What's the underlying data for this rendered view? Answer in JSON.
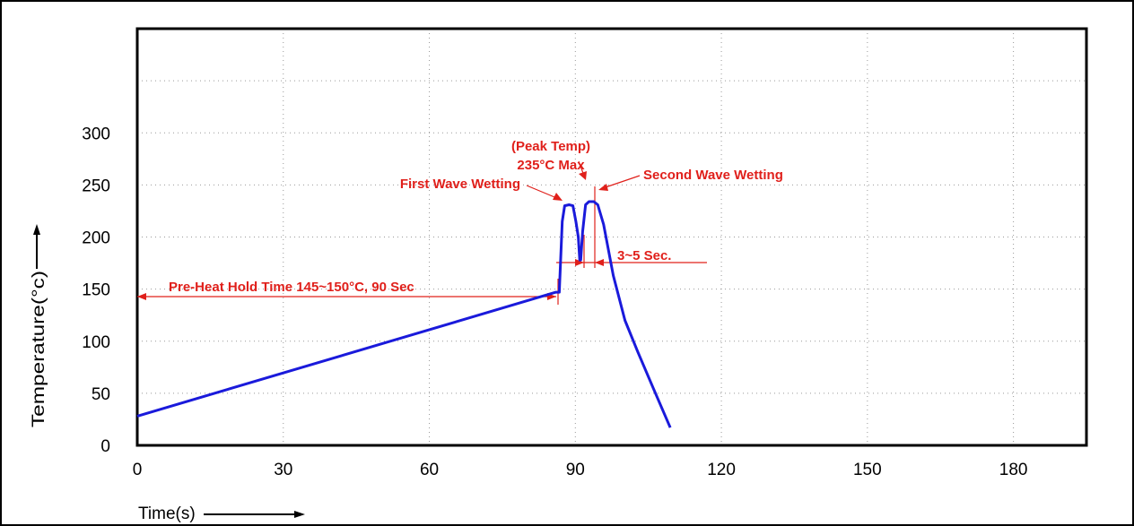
{
  "chart_data": {
    "type": "line",
    "title": "",
    "xlabel": "Time(s)",
    "ylabel": "Temperature(°c)",
    "xlim": [
      0,
      195
    ],
    "ylim": [
      0,
      400
    ],
    "x_ticks": [
      0,
      30,
      60,
      90,
      120,
      150,
      180
    ],
    "y_ticks": [
      0,
      50,
      100,
      150,
      200,
      250,
      300
    ],
    "x_tick_labels": [
      "0",
      "30",
      "60",
      "90",
      "120",
      "150",
      "180"
    ],
    "y_tick_labels": [
      "0",
      "50",
      "100",
      "150",
      "200",
      "250",
      "300"
    ],
    "grid": true,
    "series": [
      {
        "name": "",
        "color": "#1a1adb",
        "points": [
          [
            0,
            28
          ],
          [
            86,
            147
          ],
          [
            86.7,
            147
          ],
          [
            87.3,
            215
          ],
          [
            87.8,
            230
          ],
          [
            88.7,
            231
          ],
          [
            89.5,
            230
          ],
          [
            90.1,
            215
          ],
          [
            90.6,
            200
          ],
          [
            90.9,
            178
          ],
          [
            91.1,
            178
          ],
          [
            91.5,
            205
          ],
          [
            92.1,
            231
          ],
          [
            92.8,
            234
          ],
          [
            93.8,
            234
          ],
          [
            94.6,
            231
          ],
          [
            95.8,
            212
          ],
          [
            97.8,
            163
          ],
          [
            100.2,
            120
          ],
          [
            102.8,
            90
          ],
          [
            106,
            55
          ],
          [
            109.5,
            17
          ]
        ]
      }
    ],
    "annotations": [
      {
        "text": "(Peak Temp)",
        "role": "peak-label-line1"
      },
      {
        "text": "235°C Max",
        "role": "peak-label-line2"
      },
      {
        "text": "First Wave Wetting",
        "role": "first-wave"
      },
      {
        "text": "Second Wave Wetting",
        "role": "second-wave"
      },
      {
        "text": "3~5 Sec.",
        "role": "duration"
      },
      {
        "text": "Pre-Heat Hold Time 145~150°C, 90 Sec",
        "role": "preheat"
      }
    ],
    "colors": {
      "curve": "#1a1adb",
      "annotation": "#e0201b",
      "grid": "#999999",
      "axis": "#000000"
    }
  }
}
